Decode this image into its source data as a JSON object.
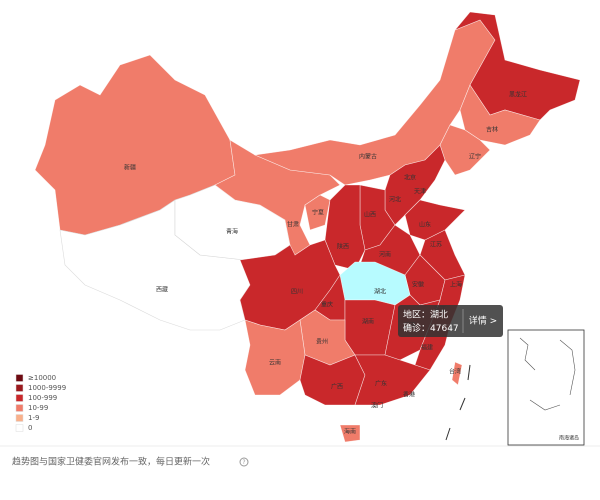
{
  "regions": [
    "黑龙江",
    "吉林",
    "辽宁",
    "内蒙古",
    "新疆",
    "北京",
    "天津",
    "河北",
    "山西",
    "宁夏",
    "甘肃",
    "青海",
    "陕西",
    "山东",
    "河南",
    "江苏",
    "湖北",
    "安徽",
    "上海",
    "西藏",
    "四川",
    "重庆",
    "湖南",
    "江西",
    "浙江",
    "贵州",
    "福建",
    "云南",
    "广西",
    "广东",
    "台湾",
    "香港",
    "澳门",
    "海南"
  ],
  "inset_label": "南海诸岛",
  "legend": [
    {
      "label": "≥10000",
      "color": "#6e0a12"
    },
    {
      "label": "1000-9999",
      "color": "#9b1a1e"
    },
    {
      "label": "100-999",
      "color": "#c9282b"
    },
    {
      "label": "10-99",
      "color": "#f07c6a"
    },
    {
      "label": "1-9",
      "color": "#f9b08b"
    },
    {
      "label": "0",
      "color": "#ffffff"
    }
  ],
  "tooltip": {
    "region": "地区：湖北",
    "confirmed_label": "确诊：",
    "confirmed": 47647,
    "detail": "详情 >"
  },
  "footer": "趋势图与国家卫健委官网发布一致，每日更新一次"
}
